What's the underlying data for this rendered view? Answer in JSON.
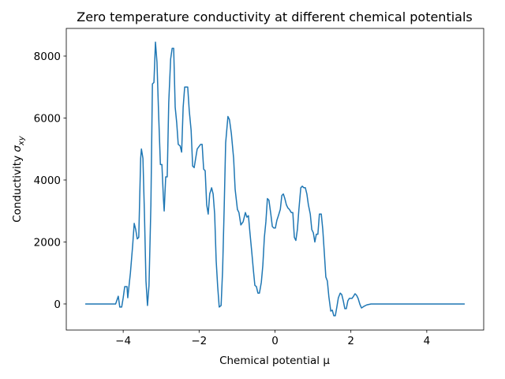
{
  "chart_data": {
    "type": "line",
    "title": "Zero temperature conductivity at different chemical potentials",
    "xlabel": "Chemical potential μ",
    "ylabel": "Conductivity",
    "ylabel_symbol": "σ",
    "ylabel_subscript": "xy",
    "x": [
      -5,
      -4.2,
      -4.13,
      -4.09,
      -4.04,
      -4.0,
      -3.96,
      -3.9,
      -3.88,
      -3.81,
      -3.75,
      -3.71,
      -3.67,
      -3.63,
      -3.59,
      -3.54,
      -3.52,
      -3.48,
      -3.44,
      -3.4,
      -3.36,
      -3.32,
      -3.27,
      -3.23,
      -3.19,
      -3.15,
      -3.11,
      -3.07,
      -3.02,
      -2.98,
      -2.94,
      -2.92,
      -2.88,
      -2.84,
      -2.8,
      -2.75,
      -2.71,
      -2.67,
      -2.63,
      -2.59,
      -2.55,
      -2.5,
      -2.46,
      -2.42,
      -2.38,
      -2.3,
      -2.26,
      -2.21,
      -2.17,
      -2.13,
      -2.09,
      -2.05,
      -1.96,
      -1.92,
      -1.88,
      -1.84,
      -1.8,
      -1.76,
      -1.72,
      -1.67,
      -1.63,
      -1.59,
      -1.55,
      -1.51,
      -1.47,
      -1.42,
      -1.38,
      -1.34,
      -1.3,
      -1.24,
      -1.2,
      -1.15,
      -1.09,
      -1.05,
      -0.99,
      -0.95,
      -0.9,
      -0.84,
      -0.78,
      -0.74,
      -0.7,
      -0.66,
      -0.61,
      -0.57,
      -0.53,
      -0.49,
      -0.45,
      -0.41,
      -0.36,
      -0.32,
      -0.28,
      -0.24,
      -0.2,
      -0.16,
      -0.11,
      -0.07,
      -0.03,
      0.01,
      0.05,
      0.09,
      0.14,
      0.18,
      0.22,
      0.26,
      0.3,
      0.34,
      0.38,
      0.43,
      0.47,
      0.51,
      0.55,
      0.59,
      0.63,
      0.68,
      0.72,
      0.76,
      0.8,
      0.84,
      0.88,
      0.93,
      0.97,
      1.01,
      1.05,
      1.09,
      1.13,
      1.17,
      1.22,
      1.26,
      1.3,
      1.34,
      1.38,
      1.42,
      1.47,
      1.51,
      1.55,
      1.59,
      1.63,
      1.67,
      1.72,
      1.76,
      1.8,
      1.84,
      1.88,
      1.92,
      1.96,
      2.03,
      2.07,
      2.11,
      2.15,
      2.19,
      2.24,
      2.28,
      2.34,
      2.42,
      2.53,
      5
    ],
    "series": [
      {
        "color": "#1f77b4",
        "values": [
          0,
          0,
          250,
          -100,
          -100,
          200,
          560,
          560,
          200,
          1000,
          1900,
          2600,
          2400,
          2100,
          2150,
          4700,
          5000,
          4700,
          2900,
          740,
          -50,
          600,
          3200,
          7100,
          7150,
          8450,
          7800,
          6250,
          4500,
          4500,
          3400,
          3000,
          4100,
          4100,
          6500,
          7900,
          8250,
          8250,
          6350,
          5850,
          5150,
          5100,
          4900,
          6350,
          7000,
          7000,
          6250,
          5600,
          4450,
          4400,
          4700,
          5000,
          5150,
          5150,
          4350,
          4300,
          3200,
          2900,
          3550,
          3750,
          3550,
          2900,
          1400,
          560,
          -100,
          -50,
          1100,
          3050,
          5200,
          6050,
          5950,
          5500,
          4700,
          3700,
          3050,
          2950,
          2550,
          2650,
          2950,
          2800,
          2850,
          2300,
          1650,
          1100,
          600,
          560,
          350,
          350,
          700,
          1250,
          2150,
          2650,
          3400,
          3350,
          2900,
          2500,
          2450,
          2450,
          2700,
          2850,
          3050,
          3500,
          3550,
          3400,
          3200,
          3100,
          3050,
          2950,
          2950,
          2150,
          2050,
          2400,
          3050,
          3750,
          3800,
          3750,
          3750,
          3550,
          3200,
          2900,
          2400,
          2300,
          2000,
          2250,
          2250,
          2900,
          2900,
          2400,
          1650,
          870,
          740,
          230,
          -230,
          -200,
          -380,
          -380,
          -100,
          200,
          350,
          300,
          100,
          -150,
          -150,
          100,
          180,
          180,
          250,
          330,
          280,
          180,
          -20,
          -130,
          -80,
          -30,
          0,
          0
        ]
      }
    ],
    "xlim": [
      -5.5,
      5.5
    ],
    "ylim": [
      -842,
      8892
    ],
    "xticks": [
      {
        "value": -4,
        "label": "−4"
      },
      {
        "value": -2,
        "label": "−2"
      },
      0,
      2,
      4
    ],
    "yticks": [
      0,
      2000,
      4000,
      6000,
      8000
    ],
    "grid": false
  }
}
